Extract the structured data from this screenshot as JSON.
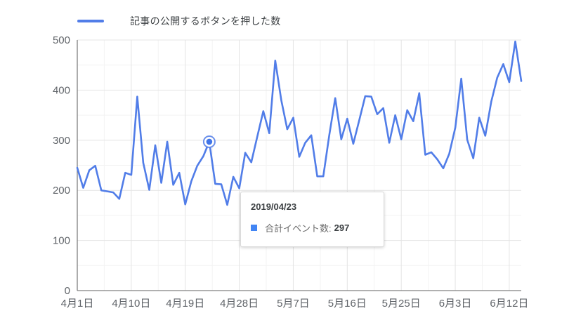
{
  "legend": {
    "label": "記事の公開するボタンを押した数"
  },
  "tooltip": {
    "date": "2019/04/23",
    "series_label": "合計イベント数:",
    "value": "297"
  },
  "colors": {
    "line": "#517de8",
    "marker_dot": "#4175e8",
    "tooltip_swatch": "#4285f4",
    "grid_major": "#e4e4e4",
    "grid_minor": "#f3f3f3",
    "axis_line": "#808080",
    "tick_label": "#5f6368"
  },
  "chart_data": {
    "type": "line",
    "title": "",
    "series_name": "記事の公開するボタンを押した数",
    "xlabel": "",
    "ylabel": "",
    "ylim": [
      0,
      500
    ],
    "grid": true,
    "legend_position": "top-left",
    "y_ticks": [
      0,
      100,
      200,
      300,
      400,
      500
    ],
    "x_tick_labels": [
      "4月1日",
      "4月10日",
      "4月19日",
      "4月28日",
      "5月7日",
      "5月16日",
      "5月25日",
      "6月3日",
      "6月12日"
    ],
    "x_tick_indices": [
      0,
      9,
      18,
      27,
      36,
      45,
      54,
      63,
      72
    ],
    "x": [
      "4/1",
      "4/2",
      "4/3",
      "4/4",
      "4/5",
      "4/6",
      "4/7",
      "4/8",
      "4/9",
      "4/10",
      "4/11",
      "4/12",
      "4/13",
      "4/14",
      "4/15",
      "4/16",
      "4/17",
      "4/18",
      "4/19",
      "4/20",
      "4/21",
      "4/22",
      "4/23",
      "4/24",
      "4/25",
      "4/26",
      "4/27",
      "4/28",
      "4/29",
      "4/30",
      "5/1",
      "5/2",
      "5/3",
      "5/4",
      "5/5",
      "5/6",
      "5/7",
      "5/8",
      "5/9",
      "5/10",
      "5/11",
      "5/12",
      "5/13",
      "5/14",
      "5/15",
      "5/16",
      "5/17",
      "5/18",
      "5/19",
      "5/20",
      "5/21",
      "5/22",
      "5/23",
      "5/24",
      "5/25",
      "5/26",
      "5/27",
      "5/28",
      "5/29",
      "5/30",
      "5/31",
      "6/1",
      "6/2",
      "6/3",
      "6/4",
      "6/5",
      "6/6",
      "6/7",
      "6/8",
      "6/9",
      "6/10",
      "6/11",
      "6/12",
      "6/13",
      "6/14"
    ],
    "values": [
      245,
      205,
      240,
      249,
      200,
      198,
      196,
      183,
      235,
      231,
      387,
      255,
      201,
      290,
      215,
      297,
      211,
      235,
      172,
      218,
      249,
      268,
      297,
      213,
      212,
      171,
      227,
      204,
      275,
      256,
      307,
      358,
      314,
      459,
      380,
      322,
      345,
      267,
      295,
      310,
      228,
      228,
      310,
      384,
      302,
      343,
      293,
      340,
      388,
      387,
      352,
      364,
      295,
      350,
      302,
      360,
      338,
      394,
      271,
      276,
      262,
      244,
      273,
      325,
      423,
      301,
      264,
      345,
      309,
      377,
      425,
      452,
      416,
      497,
      418
    ],
    "highlighted_point": {
      "index": 22,
      "date": "2019/04/23",
      "value": 297
    }
  }
}
